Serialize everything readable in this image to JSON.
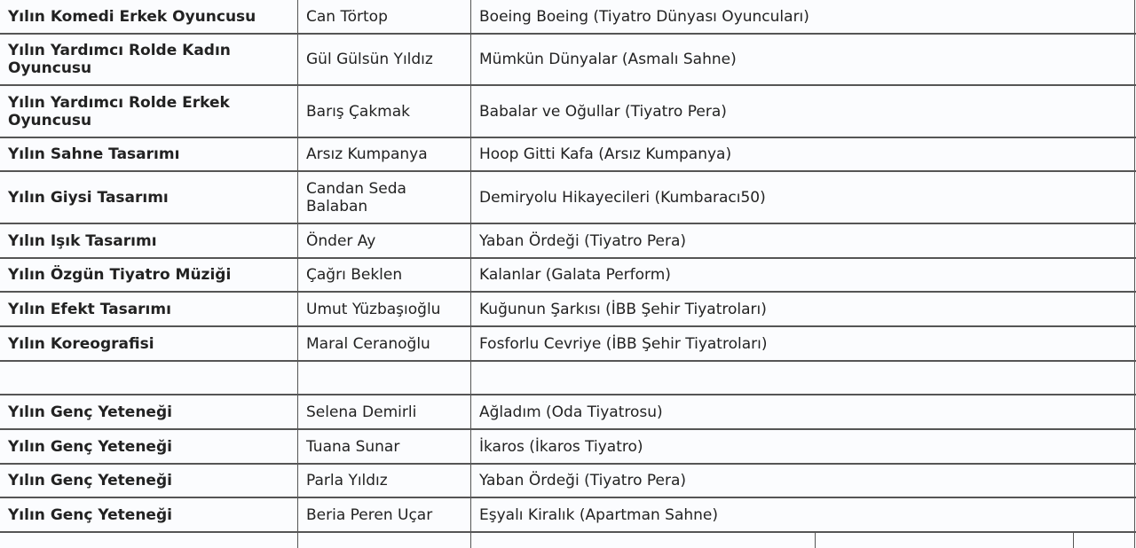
{
  "rows": [
    {
      "category": "Yılın Komedi Erkek Oyuncusu",
      "winner": "Can Törtop",
      "play": "Boeing Boeing (Tiyatro Dünyası Oyuncuları)"
    },
    {
      "category": "Yılın Yardımcı Rolde Kadın Oyuncusu",
      "winner": "Gül Gülsün Yıldız",
      "play": "Mümkün Dünyalar (Asmalı Sahne)"
    },
    {
      "category": "Yılın Yardımcı Rolde Erkek Oyuncusu",
      "winner": "Barış Çakmak",
      "play": "Babalar ve Oğullar (Tiyatro Pera)"
    },
    {
      "category": "Yılın Sahne Tasarımı",
      "winner": "Arsız Kumpanya",
      "play": "Hoop Gitti Kafa (Arsız Kumpanya)"
    },
    {
      "category": "Yılın Giysi Tasarımı",
      "winner": "Candan Seda Balaban",
      "play": "Demiryolu Hikayecileri (Kumbaracı50)"
    },
    {
      "category": "Yılın Işık Tasarımı",
      "winner": "Önder Ay",
      "play": "Yaban Ördeği (Tiyatro Pera)"
    },
    {
      "category": "Yılın Özgün Tiyatro Müziği",
      "winner": "Çağrı Beklen",
      "play": "Kalanlar (Galata Perform)"
    },
    {
      "category": "Yılın Efekt Tasarımı",
      "winner": "Umut Yüzbaşıoğlu",
      "play": "Kuğunun Şarkısı (İBB Şehir Tiyatroları)"
    },
    {
      "category": "Yılın Koreografisi",
      "winner": "Maral Ceranoğlu",
      "play": "Fosforlu Cevriye (İBB Şehir Tiyatroları)"
    },
    {
      "category": "",
      "winner": "",
      "play": ""
    },
    {
      "category": "Yılın Genç Yeteneği",
      "winner": "Selena Demirli",
      "play": "Ağladım (Oda Tiyatrosu)"
    },
    {
      "category": "Yılın Genç Yeteneği",
      "winner": "Tuana Sunar",
      "play": "İkaros (İkaros Tiyatro)"
    },
    {
      "category": "Yılın Genç Yeteneği",
      "winner": "Parla Yıldız",
      "play": "Yaban Ördeği (Tiyatro Pera)"
    },
    {
      "category": "Yılın Genç Yeteneği",
      "winner": "Beria Peren Uçar",
      "play": "Eşyalı Kiralık (Apartman Sahne)"
    }
  ]
}
